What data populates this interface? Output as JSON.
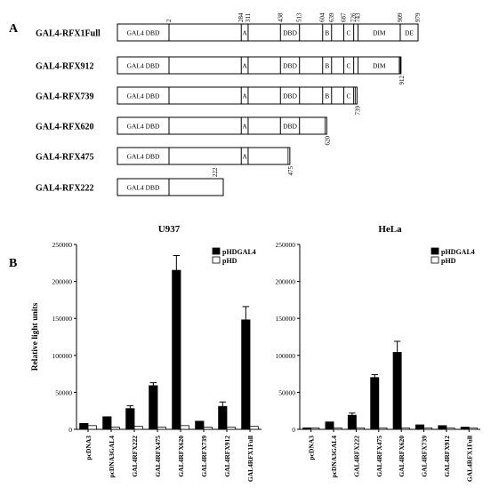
{
  "panel_labels": [
    "A",
    "B"
  ],
  "constructs": [
    {
      "name": "GAL4-RFX1Full",
      "end": 979,
      "domains": [
        {
          "label": "GAL4 DBD",
          "start": 0,
          "end": 2
        },
        {
          "label": "A",
          "start": 284,
          "end": 311
        },
        {
          "label": "DBD",
          "start": 438,
          "end": 513
        },
        {
          "label": "B",
          "start": 604,
          "end": 639
        },
        {
          "label": "C",
          "start": 687,
          "end": 726
        },
        {
          "label": "DIM",
          "start": 743,
          "end": 909
        },
        {
          "label": "DE",
          "start": 909,
          "end": 979
        }
      ],
      "top_labels": [
        "2",
        "284",
        "311",
        "438",
        "513",
        "604",
        "639",
        "687",
        "726",
        "743",
        "909",
        "979"
      ],
      "side_label": ""
    },
    {
      "name": "GAL4-RFX912",
      "end": 912,
      "domains": [
        {
          "label": "GAL4 DBD",
          "start": 0,
          "end": 2
        },
        {
          "label": "A",
          "start": 284,
          "end": 311
        },
        {
          "label": "DBD",
          "start": 438,
          "end": 513
        },
        {
          "label": "B",
          "start": 604,
          "end": 639
        },
        {
          "label": "C",
          "start": 687,
          "end": 726
        },
        {
          "label": "DIM",
          "start": 743,
          "end": 909
        }
      ],
      "top_labels": [],
      "side_label": "912"
    },
    {
      "name": "GAL4-RFX739",
      "end": 739,
      "domains": [
        {
          "label": "GAL4 DBD",
          "start": 0,
          "end": 2
        },
        {
          "label": "A",
          "start": 284,
          "end": 311
        },
        {
          "label": "DBD",
          "start": 438,
          "end": 513
        },
        {
          "label": "B",
          "start": 604,
          "end": 639
        },
        {
          "label": "C",
          "start": 687,
          "end": 726
        }
      ],
      "top_labels": [],
      "side_label": "739"
    },
    {
      "name": "GAL4-RFX620",
      "end": 620,
      "domains": [
        {
          "label": "GAL4 DBD",
          "start": 0,
          "end": 2
        },
        {
          "label": "A",
          "start": 284,
          "end": 311
        },
        {
          "label": "DBD",
          "start": 438,
          "end": 513
        }
      ],
      "top_labels": [],
      "side_label": "620"
    },
    {
      "name": "GAL4-RFX475",
      "end": 475,
      "domains": [
        {
          "label": "GAL4 DBD",
          "start": 0,
          "end": 2
        },
        {
          "label": "A",
          "start": 284,
          "end": 311
        }
      ],
      "top_labels": [],
      "side_label": "475"
    },
    {
      "name": "GAL4-RFX222",
      "end": 222,
      "domains": [
        {
          "label": "GAL4 DBD",
          "start": 0,
          "end": 2
        }
      ],
      "top_labels": [],
      "side_label": "222"
    }
  ],
  "chart_data": [
    {
      "type": "bar",
      "title": "U937",
      "ylabel": "Relative light units",
      "xlabel": "",
      "ylim": [
        0,
        250000
      ],
      "yticks": [
        "0",
        "50000",
        "100000",
        "150000",
        "200000",
        "250000"
      ],
      "categories": [
        "pcDNA3",
        "pcDNA3GAL4",
        "GAL4RFX222",
        "GAL4RFX475",
        "GAL4RFX620",
        "GAL4RFX739",
        "GAL4RFX912",
        "GAL4RFX1Full"
      ],
      "series": [
        {
          "name": "pHDGAL4",
          "color": "#000000",
          "values": [
            8000,
            17000,
            28000,
            59000,
            215000,
            11000,
            31000,
            148000
          ],
          "errors": [
            0,
            0,
            4000,
            4000,
            20000,
            0,
            6000,
            18000
          ]
        },
        {
          "name": "pHD",
          "color": "#ffffff",
          "values": [
            5000,
            3000,
            4000,
            3000,
            5000,
            3000,
            3000,
            4000
          ],
          "errors": [
            0,
            0,
            0,
            0,
            0,
            0,
            0,
            0
          ]
        }
      ],
      "legend": "top-right",
      "grid": false
    },
    {
      "type": "bar",
      "title": "HeLa",
      "ylabel": "",
      "xlabel": "",
      "ylim": [
        0,
        250000
      ],
      "yticks": [
        "0",
        "50000",
        "100000",
        "150000",
        "200000",
        "250000"
      ],
      "categories": [
        "pcDNA3",
        "pcDNA3GAL4",
        "GAL4RFX222",
        "GAL4RFX475",
        "GAL4RFX620",
        "GAL4RFX739",
        "GAL4RFX912",
        "GAL4RFX1Full"
      ],
      "series": [
        {
          "name": "pHDGAL4",
          "color": "#000000",
          "values": [
            2000,
            10000,
            19000,
            70000,
            104000,
            6000,
            5000,
            3000
          ],
          "errors": [
            0,
            0,
            3000,
            4000,
            15000,
            0,
            0,
            0
          ]
        },
        {
          "name": "pHD",
          "color": "#ffffff",
          "values": [
            2000,
            2000,
            2000,
            2000,
            2000,
            2000,
            2000,
            2000
          ],
          "errors": [
            0,
            0,
            0,
            0,
            0,
            0,
            0,
            0
          ]
        }
      ],
      "legend": "top-right",
      "grid": false
    }
  ]
}
